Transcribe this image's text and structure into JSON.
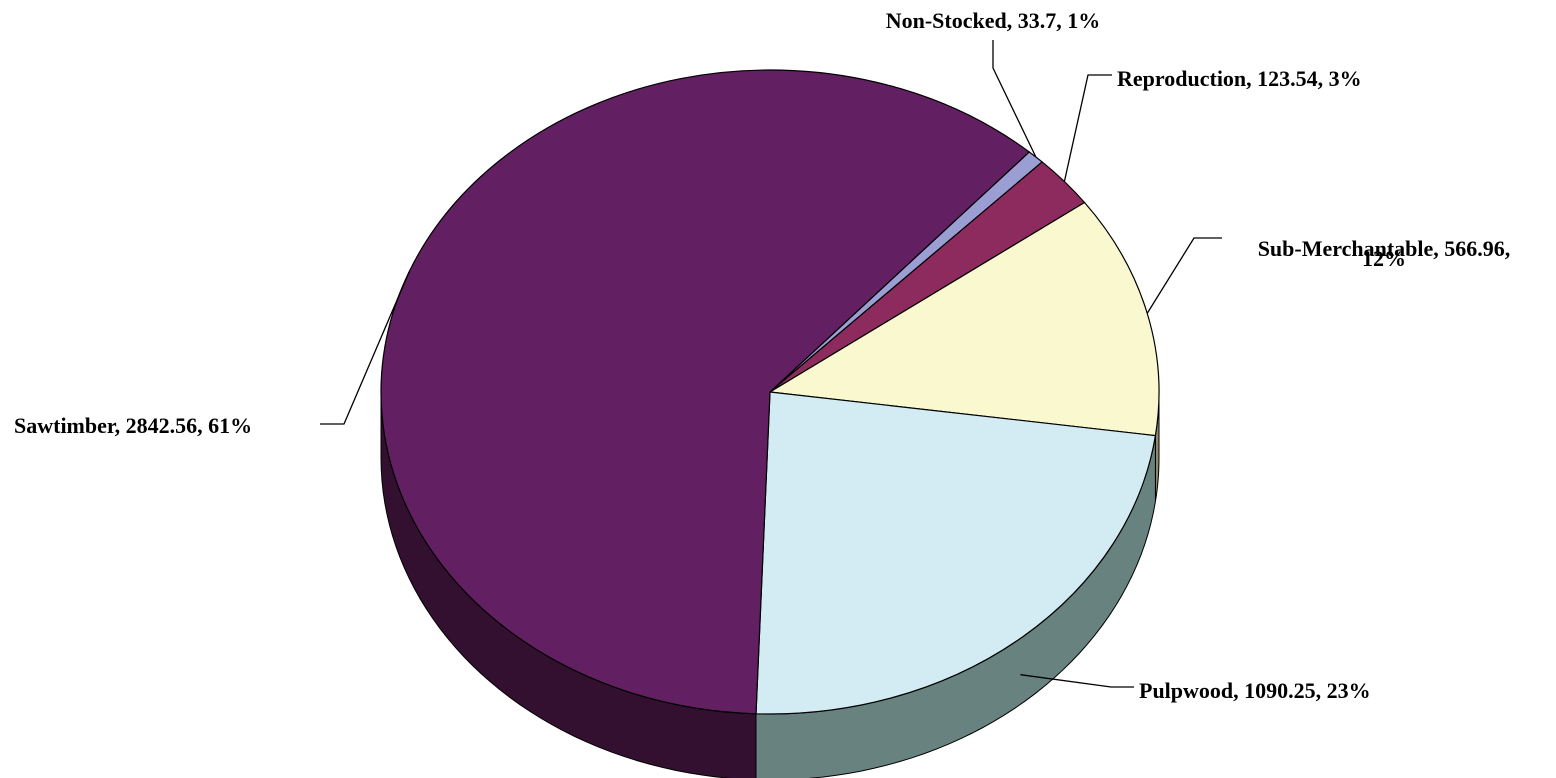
{
  "chart_data": {
    "type": "pie",
    "style": "3d",
    "title": "",
    "slices": [
      {
        "name": "Non-Stocked",
        "value": 33.7,
        "percent": 1,
        "label": "Non-Stocked, 33.7, 1%",
        "color": "#9B9ED3",
        "side_color": "#4A4C6E"
      },
      {
        "name": "Reproduction",
        "value": 123.54,
        "percent": 3,
        "label": "Reproduction, 123.54, 3%",
        "color": "#8E2B5E",
        "side_color": "#4A1530"
      },
      {
        "name": "Sub-Merchantable",
        "value": 566.96,
        "percent": 12,
        "label": "Sub-Merchantable, 566.96,",
        "label_line2": "12%",
        "color": "#FAF8CF",
        "side_color": "#8C8A6E"
      },
      {
        "name": "Pulpwood",
        "value": 1090.25,
        "percent": 23,
        "label": "Pulpwood, 1090.25, 23%",
        "color": "#D3ECF3",
        "side_color": "#688280"
      },
      {
        "name": "Sawtimber",
        "value": 2842.56,
        "percent": 61,
        "label": "Sawtimber, 2842.56, 61%",
        "color": "#621F61",
        "side_color": "#33102F"
      }
    ]
  }
}
